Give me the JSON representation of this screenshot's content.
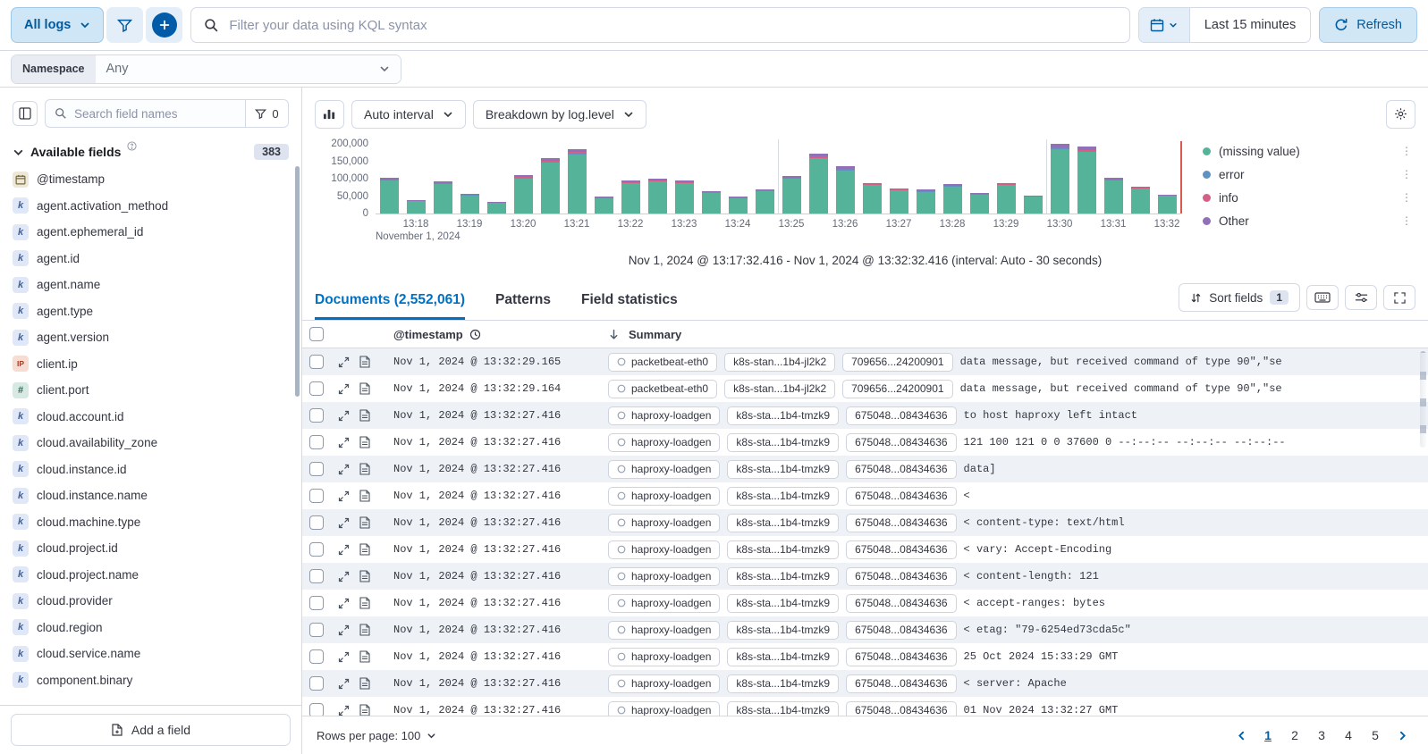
{
  "colors": {
    "primary": "#0071c2",
    "primary_dark": "#005a9e",
    "border": "#d3dae6",
    "text": "#343741",
    "subdued": "#69707d",
    "zebra_row": "#eef2f7",
    "time_marker": "#d65a4e"
  },
  "icons": {
    "search": "magnifier-glyph",
    "filter": "funnel-glyph",
    "add": "plus-in-circle-glyph",
    "calendar": "calendar-glyph",
    "refresh": "circular-arrow-glyph",
    "chevron-down": "chevron-glyph",
    "gear": "gear-glyph",
    "chart-toggle": "mini-bar-chart-glyph",
    "sort-fields": "up-down-arrows-glyph",
    "keyboard": "keyboard-glyph",
    "display-options": "sliders-glyph",
    "fullscreen": "expand-corners-glyph",
    "clock": "clock-glyph",
    "sort-descending": "down-arrow-glyph",
    "expand-row": "diagonal-arrows-glyph",
    "document": "page-glyph",
    "legend-menu": "vertical-ellipsis-glyph",
    "info": "question-circle-glyph"
  },
  "topbar": {
    "dataview": "All logs",
    "kql_placeholder": "Filter your data using KQL syntax",
    "time_range": "Last 15 minutes",
    "refresh": "Refresh"
  },
  "namespace": {
    "label": "Namespace",
    "value": "Any"
  },
  "sidebar": {
    "search_placeholder": "Search field names",
    "filter_count": "0",
    "section": "Available fields",
    "count": "383",
    "add_field": "Add a field",
    "fields": [
      {
        "name": "@timestamp",
        "type": "date"
      },
      {
        "name": "agent.activation_method",
        "type": "keyword"
      },
      {
        "name": "agent.ephemeral_id",
        "type": "keyword"
      },
      {
        "name": "agent.id",
        "type": "keyword"
      },
      {
        "name": "agent.name",
        "type": "keyword"
      },
      {
        "name": "agent.type",
        "type": "keyword"
      },
      {
        "name": "agent.version",
        "type": "keyword"
      },
      {
        "name": "client.ip",
        "type": "ip"
      },
      {
        "name": "client.port",
        "type": "number"
      },
      {
        "name": "cloud.account.id",
        "type": "keyword"
      },
      {
        "name": "cloud.availability_zone",
        "type": "keyword"
      },
      {
        "name": "cloud.instance.id",
        "type": "keyword"
      },
      {
        "name": "cloud.instance.name",
        "type": "keyword"
      },
      {
        "name": "cloud.machine.type",
        "type": "keyword"
      },
      {
        "name": "cloud.project.id",
        "type": "keyword"
      },
      {
        "name": "cloud.project.name",
        "type": "keyword"
      },
      {
        "name": "cloud.provider",
        "type": "keyword"
      },
      {
        "name": "cloud.region",
        "type": "keyword"
      },
      {
        "name": "cloud.service.name",
        "type": "keyword"
      },
      {
        "name": "component.binary",
        "type": "keyword"
      }
    ]
  },
  "chart_controls": {
    "interval": "Auto interval",
    "breakdown": "Breakdown by log.level"
  },
  "chart_data": {
    "type": "bar",
    "stacked": true,
    "x": [
      "13:17:30",
      "13:18:00",
      "13:18:30",
      "13:19:00",
      "13:19:30",
      "13:20:00",
      "13:20:30",
      "13:21:00",
      "13:21:30",
      "13:22:00",
      "13:22:30",
      "13:23:00",
      "13:23:30",
      "13:24:00",
      "13:24:30",
      "13:25:00",
      "13:25:30",
      "13:26:00",
      "13:26:30",
      "13:27:00",
      "13:27:30",
      "13:28:00",
      "13:28:30",
      "13:29:00",
      "13:29:30",
      "13:30:00",
      "13:30:30",
      "13:31:00",
      "13:31:30",
      "13:32:00"
    ],
    "x_tick_labels": [
      "13:18",
      "13:19",
      "13:20",
      "13:21",
      "13:22",
      "13:23",
      "13:24",
      "13:25",
      "13:26",
      "13:27",
      "13:28",
      "13:29",
      "13:30",
      "13:31",
      "13:32"
    ],
    "x_axis_secondary_label": "November 1, 2024",
    "y_ticks": [
      "200,000",
      "150,000",
      "100,000",
      "50,000",
      "0"
    ],
    "ylim": [
      0,
      200000
    ],
    "legend_position": "right",
    "grid": false,
    "current_time_marker": true,
    "series": [
      {
        "name": "(missing value)",
        "color": "#54b399",
        "values": [
          94800,
          35000,
          85600,
          52400,
          30400,
          101200,
          147200,
          170200,
          44200,
          87400,
          92000,
          87400,
          59800,
          44200,
          64400,
          99400,
          158200,
          124200,
          81000,
          66200,
          62600,
          78200,
          53400,
          81000,
          47800,
          184000,
          176600,
          94800,
          71800,
          50600
        ]
      },
      {
        "name": "error",
        "color": "#6092c0",
        "values": [
          1000,
          400,
          900,
          600,
          300,
          1100,
          1600,
          1900,
          500,
          1000,
          1000,
          1000,
          700,
          500,
          700,
          1100,
          1700,
          1400,
          900,
          700,
          700,
          900,
          600,
          900,
          500,
          2000,
          1900,
          1000,
          800,
          600
        ]
      },
      {
        "name": "info",
        "color": "#d36086",
        "values": [
          2100,
          800,
          1900,
          1100,
          700,
          2200,
          3200,
          3700,
          1000,
          1900,
          2000,
          1900,
          1300,
          1000,
          1400,
          2200,
          3400,
          2700,
          1800,
          1400,
          1400,
          1700,
          1200,
          1800,
          1000,
          4000,
          3800,
          2100,
          1600,
          1100
        ]
      },
      {
        "name": "Other",
        "color": "#9170b8",
        "values": [
          5100,
          1900,
          4700,
          2900,
          1700,
          5500,
          8000,
          9300,
          2400,
          4800,
          5000,
          4800,
          3300,
          2400,
          3500,
          5400,
          8600,
          6800,
          4400,
          3600,
          3400,
          4300,
          2900,
          4400,
          2600,
          10000,
          9600,
          5200,
          3900,
          2800
        ]
      }
    ]
  },
  "chart_caption": "Nov 1, 2024 @ 13:17:32.416 - Nov 1, 2024 @ 13:32:32.416 (interval: Auto - 30 seconds)",
  "tabs": [
    {
      "label": "Documents (2,552,061)",
      "active": true
    },
    {
      "label": "Patterns",
      "active": false
    },
    {
      "label": "Field statistics",
      "active": false
    }
  ],
  "grid_toolbar": {
    "sort_fields": "Sort fields",
    "sort_count": "1"
  },
  "table": {
    "columns": {
      "timestamp_label": "@timestamp",
      "summary_label": "Summary"
    },
    "rows": [
      {
        "time": "Nov 1, 2024 @ 13:32:29.165",
        "badges": [
          "packetbeat-eth0",
          "k8s-stan...1b4-jl2k2",
          "709656...24200901"
        ],
        "message": "data message, but received command of type 90\",\"se"
      },
      {
        "time": "Nov 1, 2024 @ 13:32:29.164",
        "badges": [
          "packetbeat-eth0",
          "k8s-stan...1b4-jl2k2",
          "709656...24200901"
        ],
        "message": "data message, but received command of type 90\",\"se"
      },
      {
        "time": "Nov 1, 2024 @ 13:32:27.416",
        "badges": [
          "haproxy-loadgen",
          "k8s-sta...1b4-tmzk9",
          "675048...08434636"
        ],
        "message": "to host haproxy left intact"
      },
      {
        "time": "Nov 1, 2024 @ 13:32:27.416",
        "badges": [
          "haproxy-loadgen",
          "k8s-sta...1b4-tmzk9",
          "675048...08434636"
        ],
        "message": "121 100 121 0 0 37600 0 --:--:-- --:--:-- --:--:--"
      },
      {
        "time": "Nov 1, 2024 @ 13:32:27.416",
        "badges": [
          "haproxy-loadgen",
          "k8s-sta...1b4-tmzk9",
          "675048...08434636"
        ],
        "message": "data]"
      },
      {
        "time": "Nov 1, 2024 @ 13:32:27.416",
        "badges": [
          "haproxy-loadgen",
          "k8s-sta...1b4-tmzk9",
          "675048...08434636"
        ],
        "message": "<"
      },
      {
        "time": "Nov 1, 2024 @ 13:32:27.416",
        "badges": [
          "haproxy-loadgen",
          "k8s-sta...1b4-tmzk9",
          "675048...08434636"
        ],
        "message": "< content-type: text/html"
      },
      {
        "time": "Nov 1, 2024 @ 13:32:27.416",
        "badges": [
          "haproxy-loadgen",
          "k8s-sta...1b4-tmzk9",
          "675048...08434636"
        ],
        "message": "< vary: Accept-Encoding"
      },
      {
        "time": "Nov 1, 2024 @ 13:32:27.416",
        "badges": [
          "haproxy-loadgen",
          "k8s-sta...1b4-tmzk9",
          "675048...08434636"
        ],
        "message": "< content-length: 121"
      },
      {
        "time": "Nov 1, 2024 @ 13:32:27.416",
        "badges": [
          "haproxy-loadgen",
          "k8s-sta...1b4-tmzk9",
          "675048...08434636"
        ],
        "message": "< accept-ranges: bytes"
      },
      {
        "time": "Nov 1, 2024 @ 13:32:27.416",
        "badges": [
          "haproxy-loadgen",
          "k8s-sta...1b4-tmzk9",
          "675048...08434636"
        ],
        "message": "< etag: \"79-6254ed73cda5c\""
      },
      {
        "time": "Nov 1, 2024 @ 13:32:27.416",
        "badges": [
          "haproxy-loadgen",
          "k8s-sta...1b4-tmzk9",
          "675048...08434636"
        ],
        "message": "25 Oct 2024 15:33:29 GMT"
      },
      {
        "time": "Nov 1, 2024 @ 13:32:27.416",
        "badges": [
          "haproxy-loadgen",
          "k8s-sta...1b4-tmzk9",
          "675048...08434636"
        ],
        "message": "< server: Apache"
      },
      {
        "time": "Nov 1, 2024 @ 13:32:27.416",
        "badges": [
          "haproxy-loadgen",
          "k8s-sta...1b4-tmzk9",
          "675048...08434636"
        ],
        "message": "01 Nov 2024 13:32:27 GMT"
      }
    ]
  },
  "footer": {
    "rows_per_page": "Rows per page: 100",
    "pages": [
      "1",
      "2",
      "3",
      "4",
      "5"
    ],
    "current_page": "1"
  }
}
